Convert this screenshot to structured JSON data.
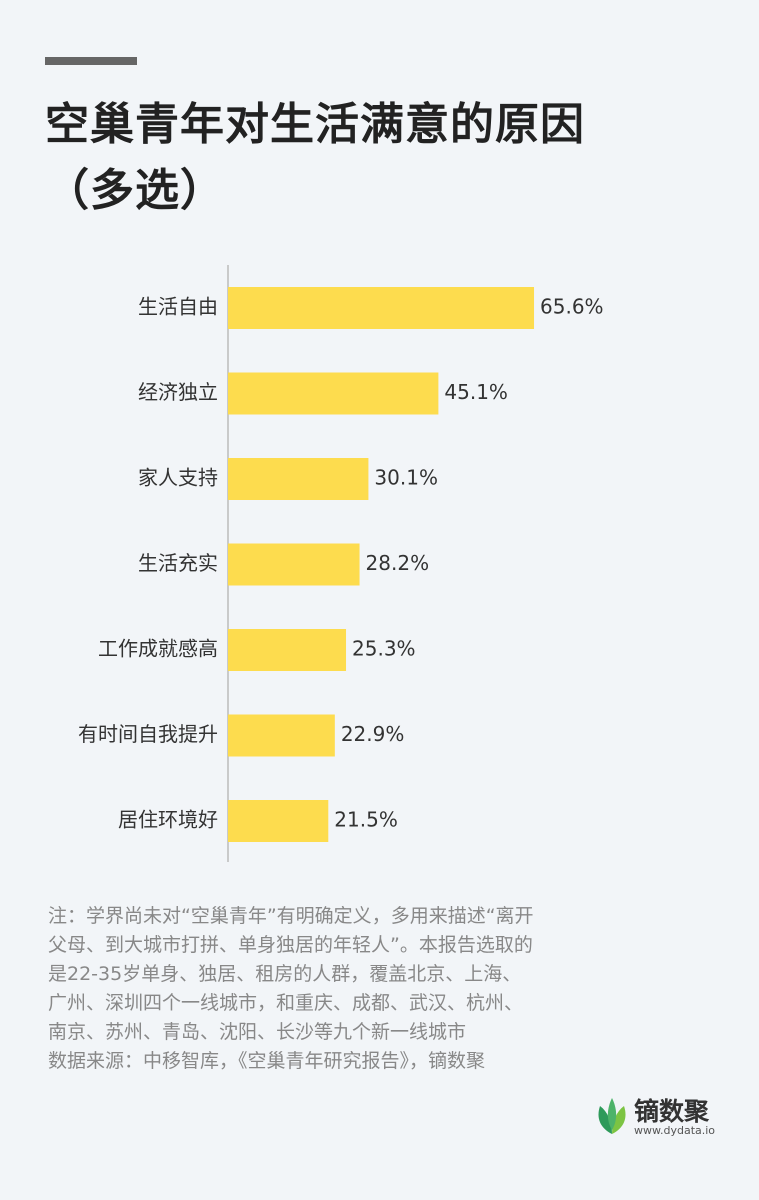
{
  "chart_data": {
    "type": "bar",
    "orientation": "horizontal",
    "title": "空巢青年对生活满意的原因（多选）",
    "categories": [
      "生活自由",
      "经济独立",
      "家人支持",
      "生活充实",
      "工作成就感高",
      "有时间自我提升",
      "居住环境好"
    ],
    "values": [
      65.6,
      45.1,
      30.1,
      28.2,
      25.3,
      22.9,
      21.5
    ],
    "value_labels": [
      "65.6%",
      "45.1%",
      "30.1%",
      "28.2%",
      "25.3%",
      "22.9%",
      "21.5%"
    ],
    "color": "#fddc4e",
    "note": "注：学界尚未对“空巢青年”有明确定义，多用来描述“离开父母、到大城市打拼、单身独居的年轻人”。本报告选取的是22-35岁单身、独居、租房的人群，覆盖北京、上海、广州、深圳四个一线城市，和重庆、成都、武汉、杭州、南京、苏州、青岛、沈阳、长沙等九个新一线城市",
    "source": "数据来源：中移智库，《空巢青年研究报告》，镝数聚"
  },
  "logo": {
    "name": "镝数聚",
    "url": "www.dydata.io"
  }
}
